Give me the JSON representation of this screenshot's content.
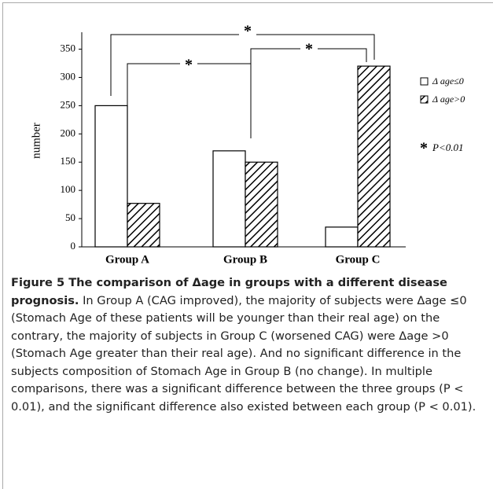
{
  "chart_data": {
    "type": "bar",
    "y_label": "number",
    "categories": [
      "Group A",
      "Group B",
      "Group C"
    ],
    "series": [
      {
        "name": "Δ age≤0",
        "color": "#000000",
        "hatch": false,
        "values": [
          250,
          170,
          35
        ]
      },
      {
        "name": "Δ age>0",
        "color": "#000000",
        "hatch": true,
        "values": [
          77,
          150,
          320
        ]
      }
    ],
    "ylim": [
      0,
      380
    ],
    "yticks": [
      0,
      50,
      100,
      150,
      200,
      250,
      300,
      350
    ],
    "annotations": [
      "*",
      "*",
      "*"
    ],
    "significance": {
      "symbol": "*",
      "text": "P<0.01"
    }
  },
  "caption": {
    "title": "Figure 5 The comparison of Δage in groups with a different disease prognosis.",
    "text": "In Group A (CAG improved), the majority of subjects were Δage ≤0 (Stomach Age of these patients will be younger than their real age) on the contrary, the majority of subjects in Group C (worsened CAG) were Δage >0 (Stomach Age greater than their real age). And no significant difference in the subjects composition of Stomach Age in Group B (no change). In multiple comparisons, there was a significant difference between the three groups (P < 0.01), and the significant difference also existed between each group (P < 0.01)."
  }
}
